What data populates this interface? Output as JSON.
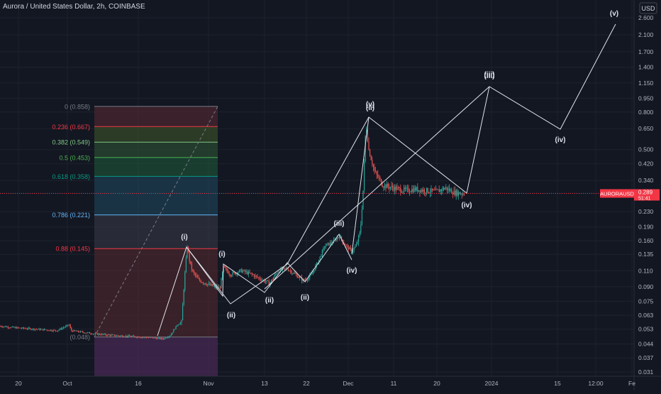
{
  "header": {
    "title": "Aurora / United States Dollar, 2h, COINBASE"
  },
  "price_scale": {
    "currency": "USD",
    "ticks": [
      "2.600",
      "2.100",
      "1.700",
      "1.400",
      "1.150",
      "0.950",
      "0.800",
      "0.650",
      "0.500",
      "0.420",
      "0.340",
      "0.290",
      "0.230",
      "0.190",
      "0.160",
      "0.135",
      "0.110",
      "0.090",
      "0.075",
      "0.063",
      "0.053",
      "0.044",
      "0.037",
      "0.031"
    ],
    "current": {
      "symbol": "AURORAUSD",
      "price": "0.289",
      "countdown": "51:41"
    }
  },
  "time_scale": {
    "labels": [
      "20",
      "Oct",
      "16",
      "Nov",
      "13",
      "22",
      "Dec",
      "11",
      "20",
      "2024",
      "15",
      "12:00",
      "Fe"
    ]
  },
  "colors": {
    "background": "#131722",
    "up": "#26a69a",
    "down": "#ef5350",
    "wave_lines": "#e0e3eb",
    "current_price": "#f23645"
  },
  "chart_data": {
    "type": "candlestick",
    "scale": "log",
    "title": "Aurora / United States Dollar, 2h, COINBASE",
    "ylim": [
      0.031,
      2.6
    ],
    "fib_retracement": {
      "levels": [
        {
          "label": "0 (0.858)",
          "ratio": 0,
          "price": 0.858,
          "color": "#787b86"
        },
        {
          "label": "0.236 (0.667)",
          "ratio": 0.236,
          "price": 0.667,
          "color": "#f23645"
        },
        {
          "label": "0.382 (0.549)",
          "ratio": 0.382,
          "price": 0.549,
          "color": "#81c784"
        },
        {
          "label": "0.5 (0.453)",
          "ratio": 0.5,
          "price": 0.453,
          "color": "#4caf50"
        },
        {
          "label": "0.618 (0.358)",
          "ratio": 0.618,
          "price": 0.358,
          "color": "#089981"
        },
        {
          "label": "0.786 (0.221)",
          "ratio": 0.786,
          "price": 0.221,
          "color": "#64b5f6"
        },
        {
          "label": "0.88 (0.145)",
          "ratio": 0.88,
          "price": 0.145,
          "color": "#f23645"
        },
        {
          "label": "(0.048)",
          "ratio": 1,
          "price": 0.048,
          "color": "#787b86"
        }
      ]
    },
    "wave_labels": [
      "(i)",
      "(i)",
      "(ii)",
      "(ii)",
      "(ii)",
      "(ii)",
      "(iii)",
      "(iv)",
      "(v)",
      "(iii)",
      "(iv)",
      "(iii)",
      "(iv)",
      "(v)"
    ]
  }
}
